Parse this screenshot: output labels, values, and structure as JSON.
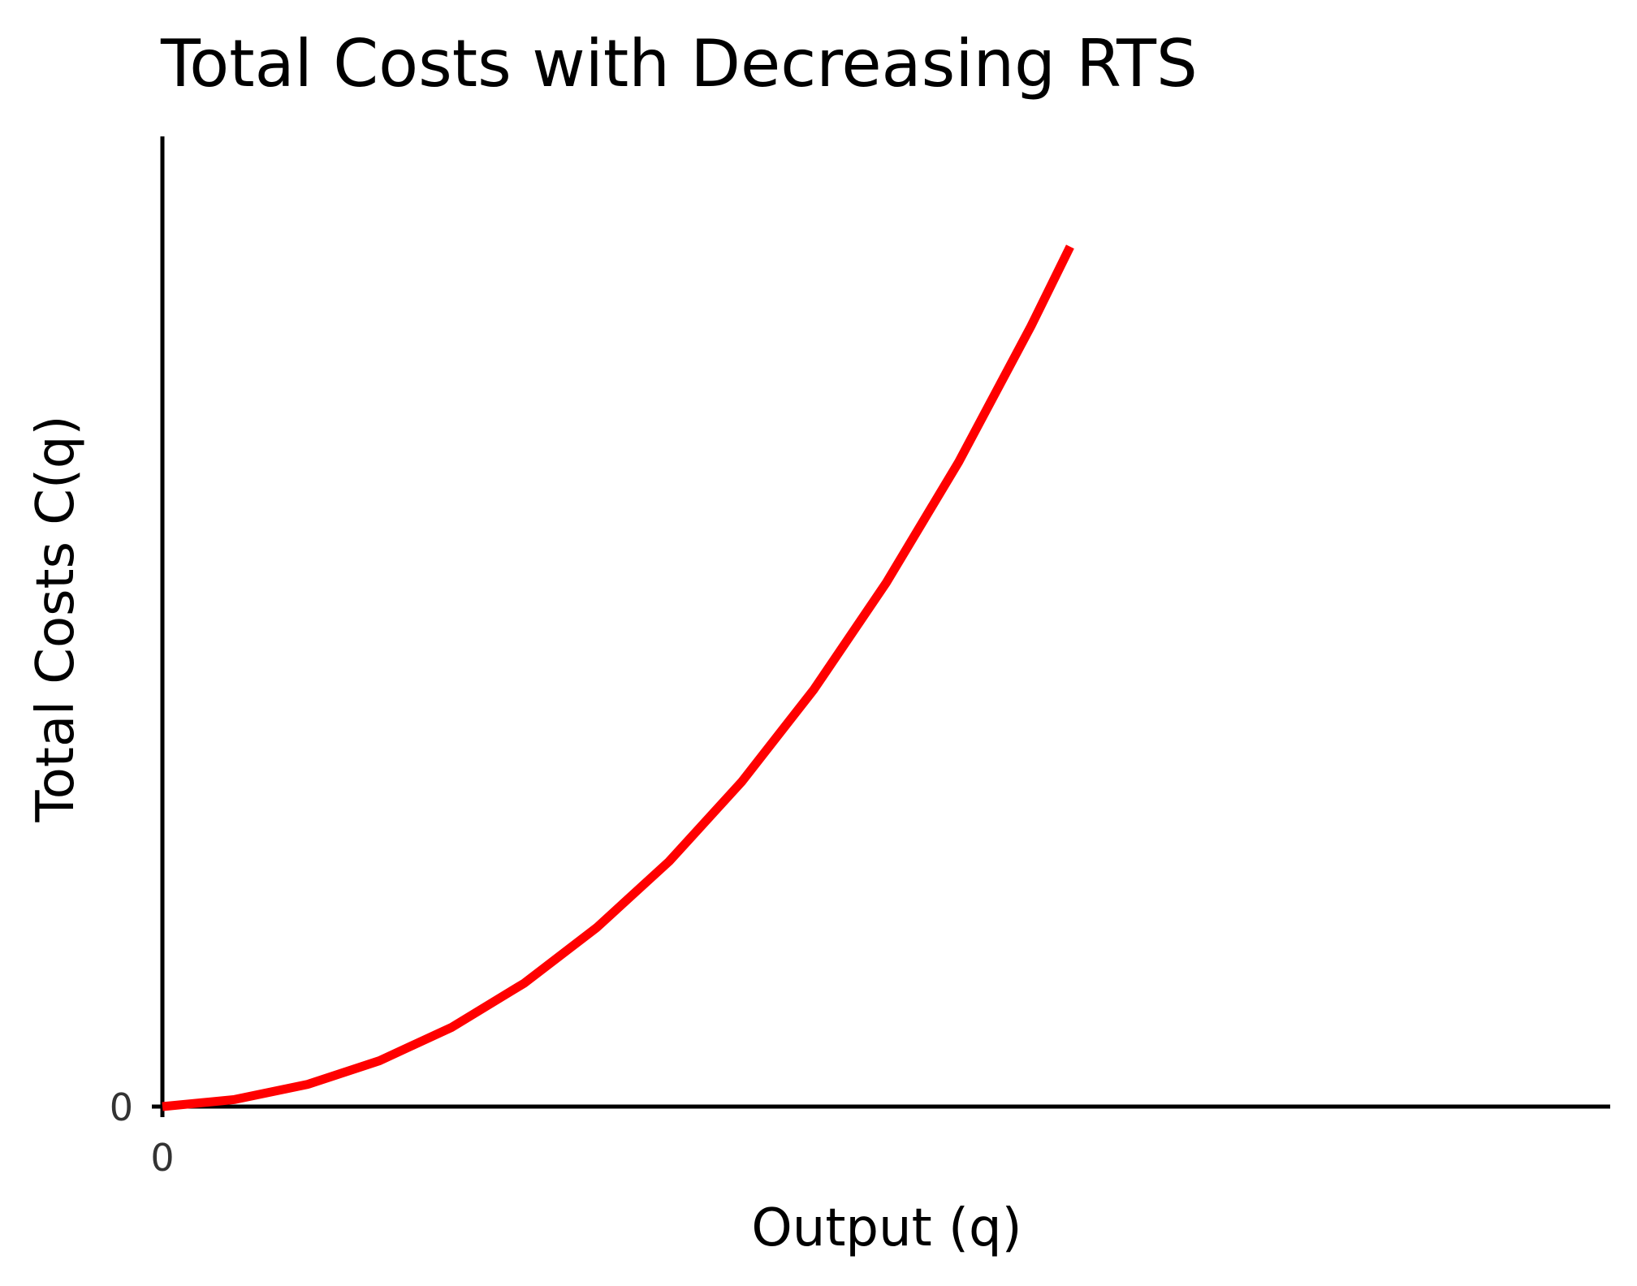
{
  "chart_data": {
    "type": "line",
    "title": "Total Costs with Decreasing RTS",
    "xlabel": "Output (q)",
    "ylabel": "Total Costs C(q)",
    "x_ticks": [
      "0"
    ],
    "y_ticks": [
      "0"
    ],
    "xlim": [
      0,
      10
    ],
    "ylim": [
      0,
      11
    ],
    "grid": false,
    "legend": "none",
    "series": [
      {
        "color": "#ff0000",
        "x": [
          0,
          0.5,
          1,
          1.5,
          2,
          2.5,
          3,
          3.5,
          4,
          4.5,
          5,
          5.5,
          6,
          6.27
        ],
        "y": [
          0,
          0.08,
          0.25,
          0.52,
          0.9,
          1.4,
          2.03,
          2.78,
          3.68,
          4.73,
          5.94,
          7.31,
          8.85,
          9.75
        ]
      }
    ]
  }
}
